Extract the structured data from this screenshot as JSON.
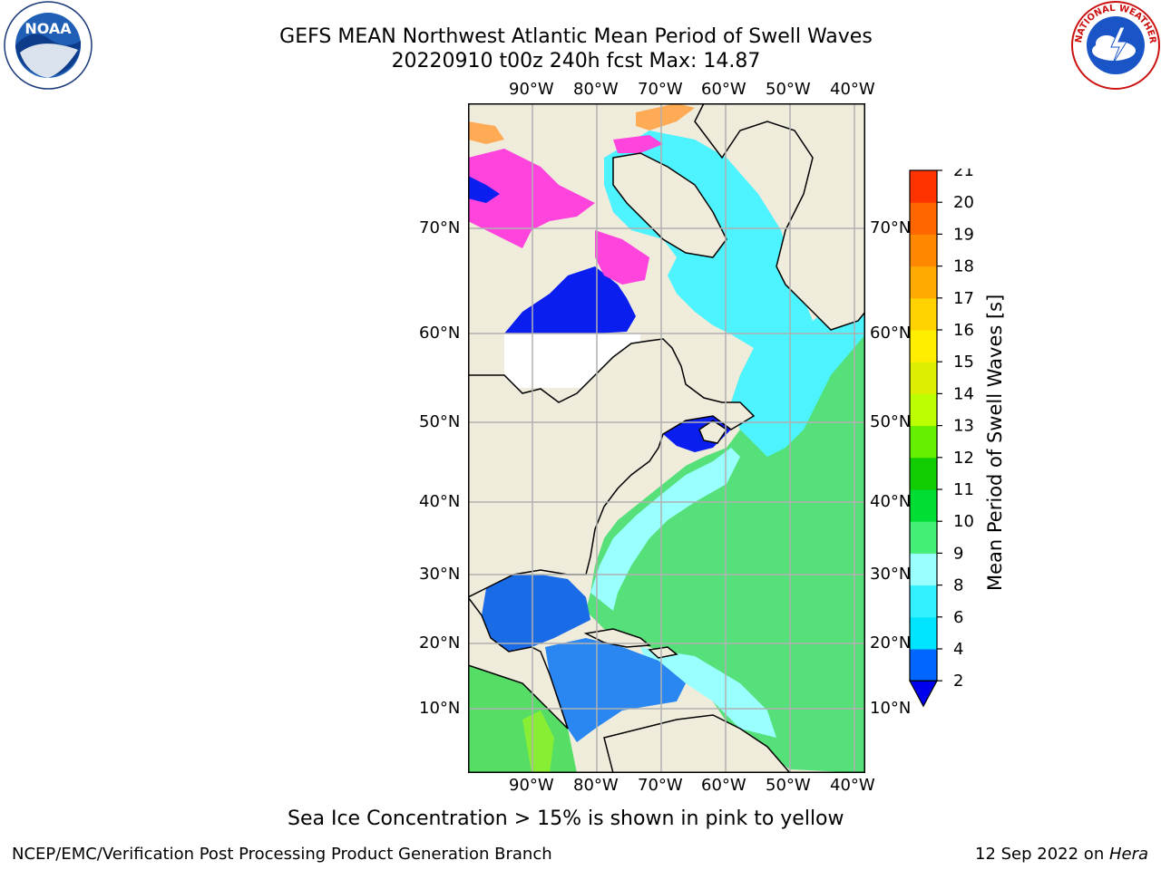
{
  "title": {
    "line1": "GEFS MEAN Northwest Atlantic Mean Period of Swell Waves",
    "line2": "20220910 t00z 240h fcst   Max: 14.87"
  },
  "logos": {
    "left": {
      "name": "NOAA",
      "text": "NOAA",
      "ring_text": "NATIONAL OCEANIC AND ATMOSPHERIC ADMINISTRATION · U.S. DEPARTMENT OF COMMERCE"
    },
    "right": {
      "name": "National Weather Service",
      "ring_text": "NATIONAL WEATHER SERVICE"
    }
  },
  "map": {
    "lon_labels": [
      "90°W",
      "80°W",
      "70°W",
      "60°W",
      "50°W",
      "40°W"
    ],
    "lat_labels": [
      "70°N",
      "60°N",
      "50°N",
      "40°N",
      "30°N",
      "20°N",
      "10°N"
    ],
    "land_color": "#efecdc",
    "grid_color": "#b0b0b0"
  },
  "colorbar": {
    "label": "Mean Period of Swell Waves [s]",
    "ticks": [
      "2",
      "4",
      "6",
      "8",
      "9",
      "10",
      "11",
      "12",
      "13",
      "14",
      "15",
      "16",
      "17",
      "18",
      "19",
      "20",
      "21"
    ],
    "colors": [
      "#0066ff",
      "#00e5ff",
      "#33f0ff",
      "#99ffff",
      "#44ee77",
      "#00dd33",
      "#11cc00",
      "#66ee00",
      "#bbff00",
      "#ddee00",
      "#ffee00",
      "#ffd200",
      "#ffaa00",
      "#ff8800",
      "#ff6600",
      "#ff3300",
      "#ff0000"
    ],
    "under_color": "#0000ee"
  },
  "caption": "Sea Ice Concentration > 15% is shown in pink to yellow",
  "footer": {
    "left": "NCEP/EMC/Verification Post Processing Product Generation Branch",
    "right_prefix": "12 Sep 2022 on ",
    "right_italic": "Hera"
  }
}
